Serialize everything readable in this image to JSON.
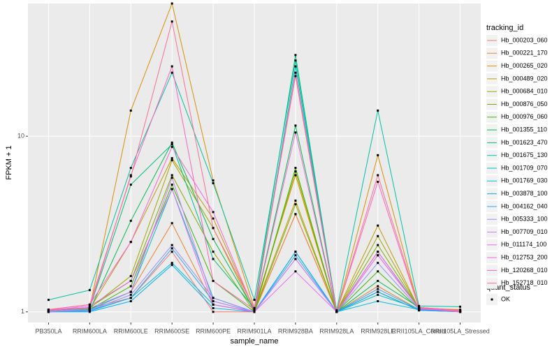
{
  "chart_data": {
    "type": "line",
    "log_y": true,
    "grid": true,
    "xlabel": "sample_name",
    "ylabel": "FPKM + 1",
    "legend_title": "tracking_id",
    "point_legend_title": "quant_status",
    "point_legend_label": "OK",
    "point_color": "#000000",
    "categories": [
      "PB350LA",
      "RRIM600LA",
      "RRIM600LE",
      "RRIM600SE",
      "RRIM600PE",
      "RRIM901LA",
      "RRIM928BA",
      "RRIM928LA",
      "RRIM928LE",
      "RRII105LA_Control",
      "RRII105LA_Stressed"
    ],
    "ylim": [
      0.87,
      57
    ],
    "yticks": [
      1,
      10
    ],
    "series": [
      {
        "name": "Hb_000203_060",
        "color": "#F8766D",
        "values": [
          1.02,
          1.05,
          1.2,
          2.2,
          1.0,
          1.0,
          3.6,
          1.0,
          1.3,
          1.02,
          1.0
        ]
      },
      {
        "name": "Hb_000221_170",
        "color": "#EA8331",
        "values": [
          1.0,
          1.03,
          1.3,
          3.2,
          1.1,
          1.0,
          3.6,
          1.0,
          1.4,
          1.03,
          1.01
        ]
      },
      {
        "name": "Hb_000265_020",
        "color": "#D89000",
        "values": [
          1.03,
          1.05,
          14,
          57,
          5.6,
          1.05,
          6.0,
          1.0,
          7.8,
          1.05,
          1.03
        ]
      },
      {
        "name": "Hb_000489_020",
        "color": "#C09B00",
        "values": [
          1.01,
          1.04,
          2.5,
          7.5,
          3.4,
          1.02,
          4.3,
          1.0,
          3.1,
          1.04,
          1.02
        ]
      },
      {
        "name": "Hb_000684_010",
        "color": "#A3A500",
        "values": [
          1.0,
          1.05,
          1.6,
          7.3,
          3.0,
          1.0,
          6.3,
          1.0,
          2.7,
          1.05,
          1.0
        ]
      },
      {
        "name": "Hb_000876_050",
        "color": "#7CAE00",
        "values": [
          1.02,
          1.06,
          1.5,
          6.0,
          2.2,
          1.0,
          4.1,
          1.0,
          2.4,
          1.05,
          1.0
        ]
      },
      {
        "name": "Hb_000976_060",
        "color": "#39B600",
        "values": [
          1.0,
          1.03,
          1.4,
          5.3,
          1.5,
          1.0,
          6.6,
          1.0,
          1.7,
          1.04,
          1.0
        ]
      },
      {
        "name": "Hb_001355_110",
        "color": "#00BB4E",
        "values": [
          1.01,
          1.02,
          3.3,
          9.2,
          2.6,
          1.02,
          11.5,
          1.0,
          1.5,
          1.06,
          1.02
        ]
      },
      {
        "name": "Hb_001623_470",
        "color": "#00BF7D",
        "values": [
          1.02,
          1.05,
          5.3,
          9.0,
          2.0,
          1.05,
          29,
          1.0,
          2.2,
          1.05,
          1.01
        ]
      },
      {
        "name": "Hb_001675_130",
        "color": "#00C1A3",
        "values": [
          1.17,
          1.33,
          6.6,
          23,
          5.4,
          1.17,
          27,
          1.02,
          14,
          1.08,
          1.07
        ]
      },
      {
        "name": "Hb_001709_070",
        "color": "#00BFC4",
        "values": [
          1.0,
          1.03,
          1.3,
          5.0,
          1.2,
          1.0,
          25,
          1.0,
          1.25,
          1.04,
          1.0
        ]
      },
      {
        "name": "Hb_001769_030",
        "color": "#00BAE0",
        "values": [
          1.0,
          1.02,
          1.2,
          1.9,
          1.1,
          1.0,
          2.2,
          1.0,
          1.15,
          1.03,
          1.0
        ]
      },
      {
        "name": "Hb_003878_100",
        "color": "#00B0F6",
        "values": [
          1.0,
          1.0,
          1.15,
          1.85,
          1.05,
          1.0,
          2.2,
          1.0,
          1.3,
          1.02,
          1.0
        ]
      },
      {
        "name": "Hb_004162_040",
        "color": "#35A2FF",
        "values": [
          1.0,
          1.01,
          1.2,
          2.3,
          1.15,
          1.0,
          2.1,
          1.0,
          1.35,
          1.03,
          1.0
        ]
      },
      {
        "name": "Hb_005333_100",
        "color": "#9590FF",
        "values": [
          1.01,
          1.02,
          1.25,
          2.4,
          1.2,
          1.0,
          2.0,
          1.0,
          1.9,
          1.04,
          1.01
        ]
      },
      {
        "name": "Hb_007709_010",
        "color": "#C77CFF",
        "values": [
          1.0,
          1.05,
          1.3,
          5.8,
          1.15,
          1.0,
          2.0,
          1.0,
          2.1,
          1.05,
          1.0
        ]
      },
      {
        "name": "Hb_011174_100",
        "color": "#E76BF3",
        "values": [
          1.02,
          1.08,
          1.5,
          5.0,
          1.1,
          1.0,
          1.7,
          1.0,
          2.1,
          1.05,
          1.02
        ]
      },
      {
        "name": "Hb_012753_200",
        "color": "#FA62DB",
        "values": [
          1.03,
          1.1,
          2.5,
          8.7,
          3.7,
          1.02,
          10.5,
          1.0,
          2.2,
          1.04,
          1.01
        ]
      },
      {
        "name": "Hb_120268_010",
        "color": "#FF62BC",
        "values": [
          1.02,
          1.06,
          6.0,
          25,
          1.5,
          1.03,
          23,
          1.0,
          5.5,
          1.05,
          1.0
        ]
      },
      {
        "name": "Hb_152718_010",
        "color": "#FF6C91",
        "values": [
          1.03,
          1.1,
          5.9,
          45,
          3.0,
          1.05,
          22,
          1.0,
          6.0,
          1.06,
          1.02
        ]
      }
    ]
  }
}
